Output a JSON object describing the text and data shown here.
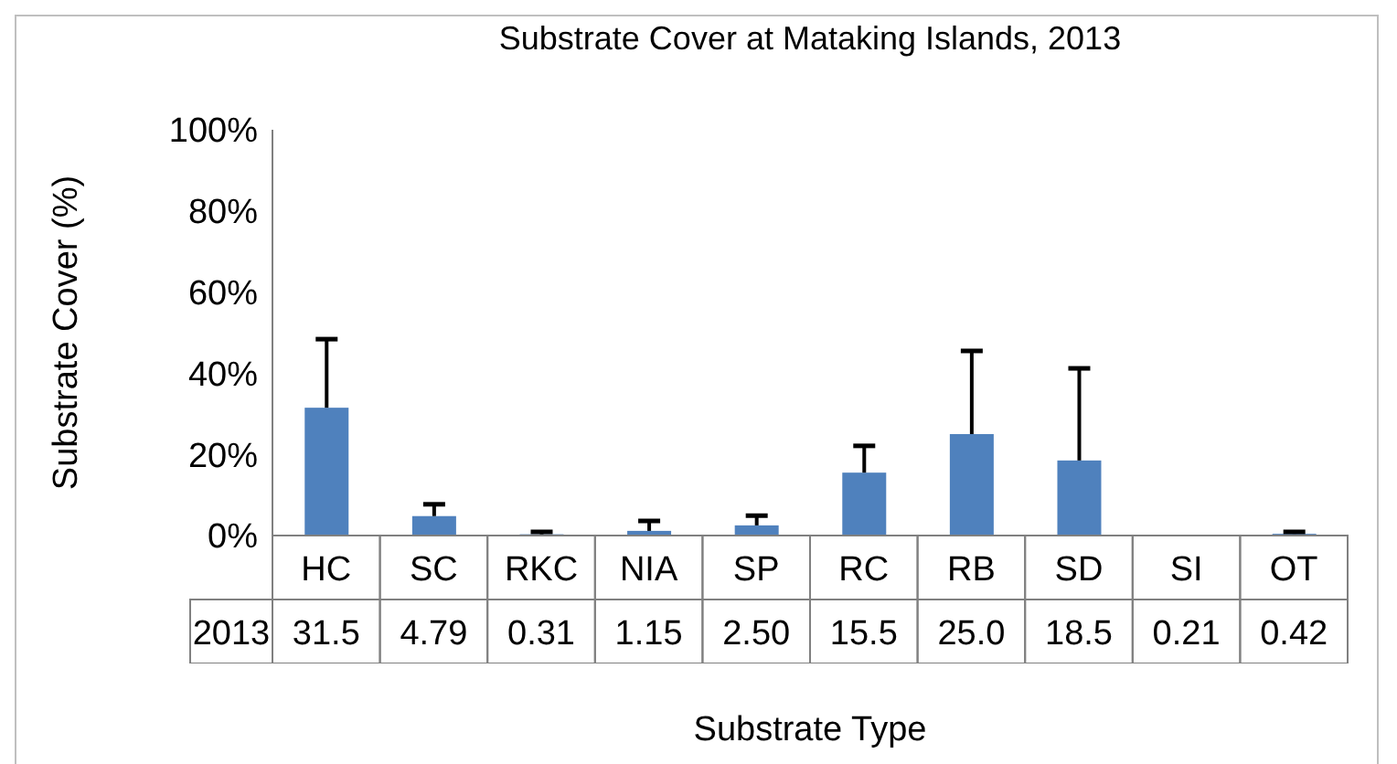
{
  "chart_data": {
    "type": "bar",
    "title": "Substrate Cover at Mataking Islands, 2013",
    "xlabel": "Substrate Type",
    "ylabel": "Substrate Cover (%)",
    "categories": [
      "HC",
      "SC",
      "RKC",
      "NIA",
      "SP",
      "RC",
      "RB",
      "SD",
      "SI",
      "OT"
    ],
    "series": [
      {
        "name": "2013",
        "color": "#4f81bd",
        "values": [
          31.5,
          4.79,
          0.31,
          1.15,
          2.5,
          15.5,
          25.0,
          18.5,
          0.21,
          0.42
        ],
        "value_labels": [
          "31.5",
          "4.79",
          "0.31",
          "1.15",
          "2.50",
          "15.5",
          "25.0",
          "18.5",
          "0.21",
          "0.42"
        ],
        "errors": [
          [
            31.5,
            48.4
          ],
          [
            4.79,
            7.7
          ],
          [
            0.31,
            0.9
          ],
          [
            1.15,
            3.6
          ],
          [
            2.5,
            4.9
          ],
          [
            15.5,
            22.1
          ],
          [
            25.0,
            45.5
          ],
          [
            18.5,
            41.2
          ],
          null,
          [
            0.42,
            0.9
          ]
        ]
      }
    ],
    "ylim": [
      0,
      100
    ],
    "yticks": [
      {
        "value": 0,
        "label": "0%"
      },
      {
        "value": 20,
        "label": "20%"
      },
      {
        "value": 40,
        "label": "40%"
      },
      {
        "value": 60,
        "label": "60%"
      },
      {
        "value": 80,
        "label": "80%"
      },
      {
        "value": 100,
        "label": "100%"
      }
    ],
    "grid": false
  }
}
